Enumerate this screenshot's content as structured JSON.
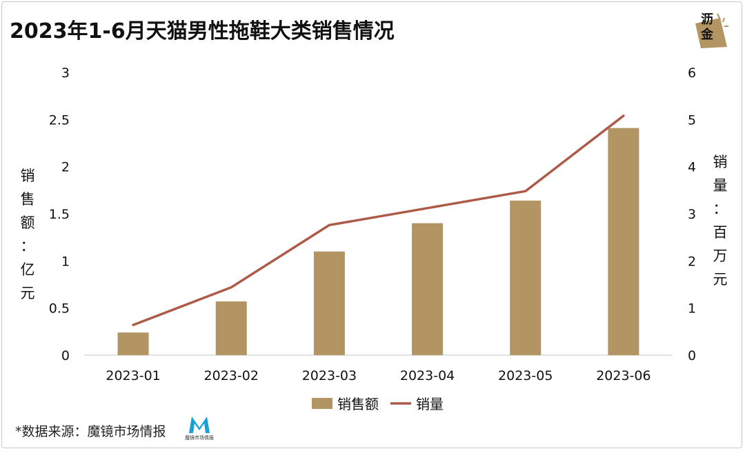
{
  "title": "2023年1-6月天猫男性拖鞋大类销售情况",
  "brand": {
    "text_line1": "沥",
    "text_line2": "金"
  },
  "source": {
    "text": "*数据来源：魔镜市场情报",
    "logo_text": "魔镜市场情报"
  },
  "colors": {
    "bar": "#b39463",
    "line": "#ad5b48",
    "axis": "#d9d9d9",
    "text": "#111111"
  },
  "chart_data": {
    "type": "bar",
    "categories": [
      "2023-01",
      "2023-02",
      "2023-03",
      "2023-04",
      "2023-05",
      "2023-06"
    ],
    "series": [
      {
        "name": "销售额",
        "type": "bar",
        "axis": "left",
        "values": [
          0.24,
          0.57,
          1.1,
          1.4,
          1.64,
          2.41
        ]
      },
      {
        "name": "销量",
        "type": "line",
        "axis": "right",
        "values": [
          0.64,
          1.44,
          2.76,
          3.12,
          3.48,
          5.08
        ]
      }
    ],
    "y_left": {
      "label_chars": [
        "销",
        "售",
        "额",
        "：",
        "亿",
        "元"
      ],
      "ylim": [
        0,
        3
      ],
      "ticks": [
        "0",
        "0.5",
        "1",
        "1.5",
        "2",
        "2.5",
        "3"
      ]
    },
    "y_right": {
      "label_chars": [
        "销",
        "量",
        "：",
        "百",
        "万",
        "元"
      ],
      "ylim": [
        0,
        6
      ],
      "ticks": [
        "0",
        "1",
        "2",
        "3",
        "4",
        "5",
        "6"
      ]
    },
    "legend": {
      "position": "bottom",
      "items": [
        "销售额",
        "销量"
      ]
    },
    "grid": false
  }
}
